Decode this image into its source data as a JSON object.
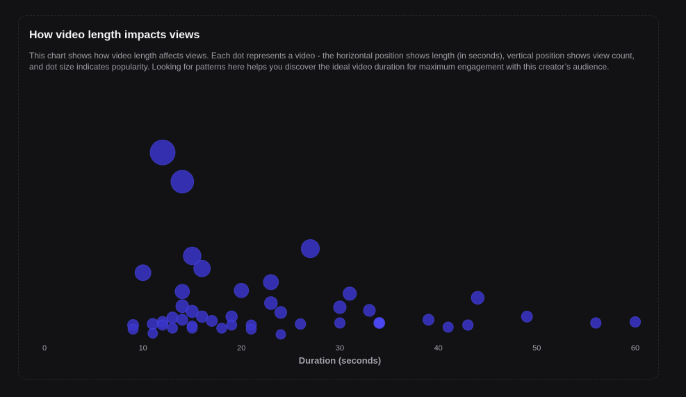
{
  "card": {
    "title": "How video length impacts views",
    "description": "This chart shows how video length affects views. Each dot represents a video - the horizontal position shows length (in seconds), vertical position shows view count, and dot size indicates popularity. Looking for patterns here helps you discover the ideal video duration for maximum engagement with this creator’s audience."
  },
  "colors": {
    "dot_fill": "#3a35c9",
    "dot_stroke": "#4b47e6",
    "highlight_fill": "#4a46f0",
    "tick_text": "#a1a1aa",
    "background": "#121214"
  },
  "chart_data": {
    "type": "scatter",
    "title": "How video length impacts views",
    "xlabel": "Duration (seconds)",
    "ylabel": "",
    "xlim": [
      0,
      60
    ],
    "ylim": [
      0,
      100
    ],
    "xticks": [
      0,
      10,
      20,
      30,
      40,
      50,
      60
    ],
    "y_axis_visible": false,
    "grid": false,
    "size_encoding": "popularity",
    "points": [
      {
        "x": 12,
        "y": 85,
        "size": 100
      },
      {
        "x": 14,
        "y": 71,
        "size": 90
      },
      {
        "x": 27,
        "y": 39,
        "size": 70
      },
      {
        "x": 15,
        "y": 35.5,
        "size": 68
      },
      {
        "x": 16,
        "y": 29.5,
        "size": 63
      },
      {
        "x": 10,
        "y": 27.5,
        "size": 60
      },
      {
        "x": 23,
        "y": 23,
        "size": 56
      },
      {
        "x": 14,
        "y": 18.5,
        "size": 53
      },
      {
        "x": 20,
        "y": 19,
        "size": 53
      },
      {
        "x": 31,
        "y": 17.5,
        "size": 48
      },
      {
        "x": 44,
        "y": 15.5,
        "size": 46
      },
      {
        "x": 23,
        "y": 13,
        "size": 46
      },
      {
        "x": 14,
        "y": 11.5,
        "size": 46
      },
      {
        "x": 30,
        "y": 11,
        "size": 45
      },
      {
        "x": 15,
        "y": 9,
        "size": 44
      },
      {
        "x": 24,
        "y": 8.5,
        "size": 42
      },
      {
        "x": 33,
        "y": 9.5,
        "size": 42
      },
      {
        "x": 16,
        "y": 6.5,
        "size": 40
      },
      {
        "x": 19,
        "y": 6.5,
        "size": 40
      },
      {
        "x": 13,
        "y": 6,
        "size": 40
      },
      {
        "x": 49,
        "y": 6.5,
        "size": 38
      },
      {
        "x": 14,
        "y": 5,
        "size": 38
      },
      {
        "x": 17,
        "y": 4.5,
        "size": 38
      },
      {
        "x": 39,
        "y": 5,
        "size": 38
      },
      {
        "x": 12,
        "y": 4,
        "size": 38
      },
      {
        "x": 11,
        "y": 3,
        "size": 38
      },
      {
        "x": 9,
        "y": 2.5,
        "size": 38
      },
      {
        "x": 26,
        "y": 3,
        "size": 36
      },
      {
        "x": 30,
        "y": 3.5,
        "size": 36
      },
      {
        "x": 34,
        "y": 3.5,
        "size": 38,
        "highlight": true
      },
      {
        "x": 56,
        "y": 3.5,
        "size": 36
      },
      {
        "x": 60,
        "y": 4,
        "size": 36
      },
      {
        "x": 43,
        "y": 2.5,
        "size": 36
      },
      {
        "x": 41,
        "y": 1.5,
        "size": 35
      },
      {
        "x": 19,
        "y": 2.5,
        "size": 35
      },
      {
        "x": 21,
        "y": 2.5,
        "size": 35
      },
      {
        "x": 15,
        "y": 2,
        "size": 35
      },
      {
        "x": 12,
        "y": 2.5,
        "size": 35
      },
      {
        "x": 18,
        "y": 1,
        "size": 34
      },
      {
        "x": 13,
        "y": 1,
        "size": 34
      },
      {
        "x": 15,
        "y": 1,
        "size": 34
      },
      {
        "x": 9,
        "y": 0.5,
        "size": 34
      },
      {
        "x": 21,
        "y": 0.5,
        "size": 34
      },
      {
        "x": 11,
        "y": -1.5,
        "size": 32
      },
      {
        "x": 24,
        "y": -2,
        "size": 32
      }
    ]
  }
}
